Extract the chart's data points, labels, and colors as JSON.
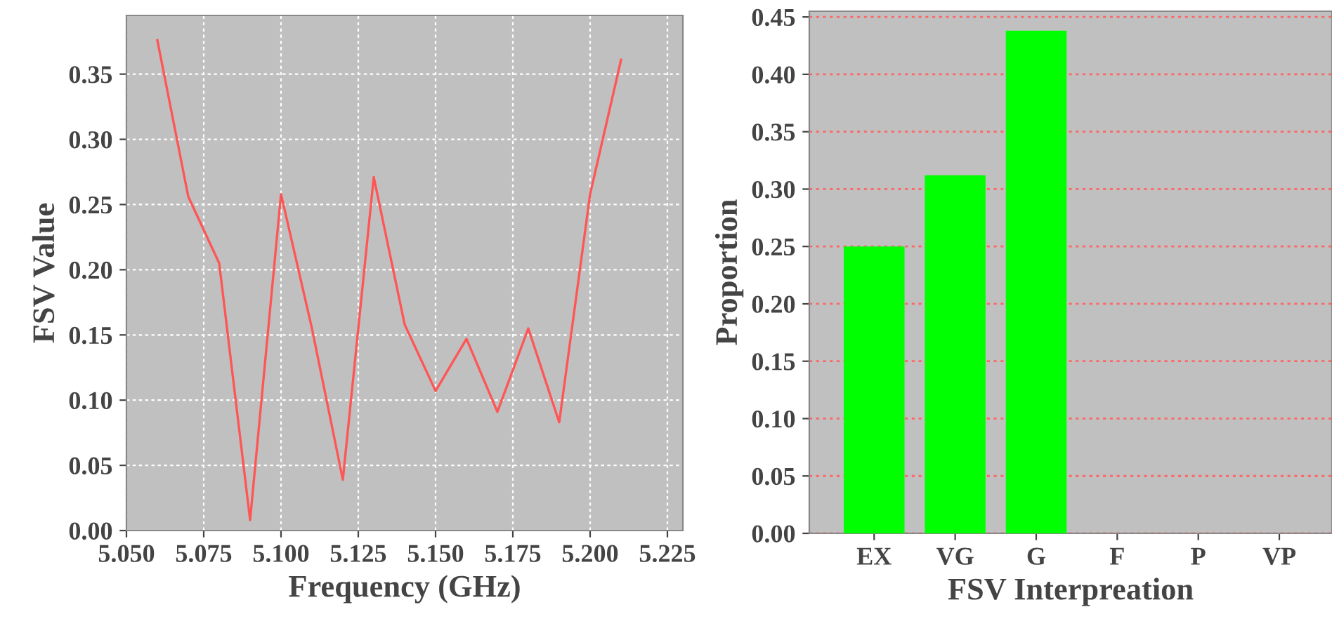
{
  "chart_data": [
    {
      "type": "line",
      "xlabel": "Frequency (GHz)",
      "ylabel": "FSV Value",
      "x": [
        5.06,
        5.07,
        5.08,
        5.09,
        5.1,
        5.11,
        5.12,
        5.13,
        5.14,
        5.15,
        5.16,
        5.17,
        5.18,
        5.19,
        5.2,
        5.21
      ],
      "series": [
        {
          "color": "#ff5555",
          "values": [
            0.376,
            0.256,
            0.205,
            0.008,
            0.258,
            0.155,
            0.039,
            0.271,
            0.158,
            0.107,
            0.147,
            0.091,
            0.155,
            0.083,
            0.258,
            0.361
          ]
        }
      ],
      "xlim": [
        5.05,
        5.23
      ],
      "xticks": [
        {
          "value": 5.05,
          "label": "5.050"
        },
        {
          "value": 5.075,
          "label": "5.075"
        },
        {
          "value": 5.1,
          "label": "5.100"
        },
        {
          "value": 5.125,
          "label": "5.125"
        },
        {
          "value": 5.15,
          "label": "5.150"
        },
        {
          "value": 5.175,
          "label": "5.175"
        },
        {
          "value": 5.2,
          "label": "5.200"
        },
        {
          "value": 5.225,
          "label": "5.225"
        }
      ],
      "ylim": [
        0,
        0.395
      ],
      "yticks": [
        {
          "value": 0,
          "label": "0.00"
        },
        {
          "value": 0.05,
          "label": "0.05"
        },
        {
          "value": 0.1,
          "label": "0.10"
        },
        {
          "value": 0.15,
          "label": "0.15"
        },
        {
          "value": 0.2,
          "label": "0.20"
        },
        {
          "value": 0.25,
          "label": "0.25"
        },
        {
          "value": 0.3,
          "label": "0.30"
        },
        {
          "value": 0.35,
          "label": "0.35"
        }
      ],
      "grid": true,
      "marker": "none",
      "line_style": "solid"
    },
    {
      "type": "bar",
      "xlabel": "FSV Interpreation",
      "ylabel": "Proportion",
      "categories": [
        "EX",
        "VG",
        "G",
        "F",
        "P",
        "VP"
      ],
      "series": [
        {
          "color": "#00ff00",
          "values": [
            0.25,
            0.312,
            0.438,
            0,
            0,
            0
          ]
        }
      ],
      "ylim": [
        0,
        0.455
      ],
      "yticks": [
        {
          "value": 0,
          "label": "0.00"
        },
        {
          "value": 0.05,
          "label": "0.05"
        },
        {
          "value": 0.1,
          "label": "0.10"
        },
        {
          "value": 0.15,
          "label": "0.15"
        },
        {
          "value": 0.2,
          "label": "0.20"
        },
        {
          "value": 0.25,
          "label": "0.25"
        },
        {
          "value": 0.3,
          "label": "0.30"
        },
        {
          "value": 0.35,
          "label": "0.35"
        },
        {
          "value": 0.4,
          "label": "0.40"
        },
        {
          "value": 0.45,
          "label": "0.45"
        }
      ],
      "grid": "y"
    }
  ]
}
